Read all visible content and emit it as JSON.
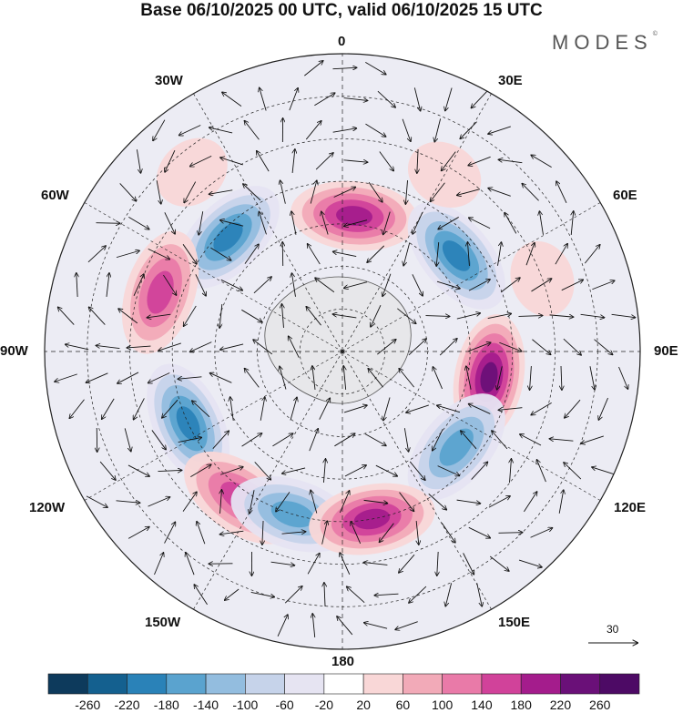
{
  "title": "Base 06/10/2025 00 UTC, valid 06/10/2025 15 UTC",
  "logo": "MODES",
  "logo_mark": "©",
  "longitude_labels": {
    "lon_0": "0",
    "lon_30e": "30E",
    "lon_60e": "60E",
    "lon_90e": "90E",
    "lon_120e": "120E",
    "lon_150e": "150E",
    "lon_180": "180",
    "lon_150w": "150W",
    "lon_120w": "120W",
    "lon_90w": "90W",
    "lon_60w": "60W",
    "lon_30w": "30W"
  },
  "vector_scale_label": "30",
  "colorbar": {
    "labels": [
      "-260",
      "-220",
      "-180",
      "-140",
      "-100",
      "-60",
      "-20",
      "20",
      "60",
      "100",
      "140",
      "180",
      "220",
      "260"
    ],
    "colors": [
      "#0d3a5c",
      "#14608f",
      "#2a82b8",
      "#5aa3cf",
      "#93bddf",
      "#c6d3ea",
      "#e6e4f2",
      "#ffffff",
      "#f9d7d7",
      "#f2aab8",
      "#e97aa8",
      "#d1429a",
      "#a41c8c",
      "#6a1078",
      "#4d0a65"
    ]
  },
  "anomalies": [
    {
      "name": "anomaly-high-0",
      "lon": 5,
      "lat": -58,
      "value": 240
    },
    {
      "name": "anomaly-low-30w",
      "lon": -45,
      "lat": -52,
      "value": -230
    },
    {
      "name": "anomaly-low-50e",
      "lon": 50,
      "lat": -55,
      "value": -220
    },
    {
      "name": "anomaly-high-70w",
      "lon": -72,
      "lat": -45,
      "value": 200
    },
    {
      "name": "anomaly-high-100e",
      "lon": 100,
      "lat": -55,
      "value": 260
    },
    {
      "name": "anomaly-low-130e",
      "lon": 130,
      "lat": -55,
      "value": -200
    },
    {
      "name": "anomaly-low-115w",
      "lon": -115,
      "lat": -50,
      "value": -220
    },
    {
      "name": "anomaly-high-145w",
      "lon": -145,
      "lat": -48,
      "value": 180
    },
    {
      "name": "anomaly-low-165w",
      "lon": -163,
      "lat": -50,
      "value": -200
    },
    {
      "name": "anomaly-high-170e",
      "lon": 170,
      "lat": -50,
      "value": 240
    },
    {
      "name": "anomaly-high-30e-weak",
      "lon": 30,
      "lat": -42,
      "value": 60
    },
    {
      "name": "anomaly-high-60e-weak",
      "lon": 70,
      "lat": -40,
      "value": 60
    },
    {
      "name": "anomaly-high-40w-weak",
      "lon": -40,
      "lat": -35,
      "value": 60
    }
  ]
}
